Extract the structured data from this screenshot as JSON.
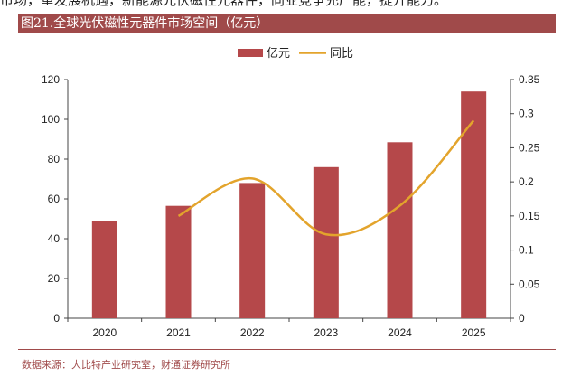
{
  "header": {
    "top_text": "市场，重发展机遇，新能源光伏磁性元器件，同业竞争充产能，提升能力。",
    "title": "图21.全球光伏磁性元器件市场空间（亿元）"
  },
  "footer": {
    "source": "数据来源：大比特产业研究室，财通证券研究所"
  },
  "colors": {
    "bar": "#b5484a",
    "line": "#e3a42c",
    "title_bg": "#a04a4a"
  },
  "chart_data": {
    "type": "bar",
    "categories": [
      "2020",
      "2021",
      "2022",
      "2023",
      "2024",
      "2025"
    ],
    "series": [
      {
        "name": "亿元",
        "type": "bar",
        "axis": "left",
        "values": [
          49,
          56.5,
          68,
          76,
          88.5,
          114
        ]
      },
      {
        "name": "同比",
        "type": "line",
        "axis": "right",
        "values": [
          null,
          0.15,
          0.205,
          0.123,
          0.165,
          0.29
        ]
      }
    ],
    "ylim_left": [
      0,
      120
    ],
    "ylim_right": [
      0,
      0.35
    ],
    "yticks_left": [
      "0",
      "20",
      "40",
      "60",
      "80",
      "100",
      "120"
    ],
    "yticks_right": [
      "0",
      "0.05",
      "0.1",
      "0.15",
      "0.2",
      "0.25",
      "0.3",
      "0.35"
    ],
    "legend_position": "top-center",
    "grid": false
  }
}
